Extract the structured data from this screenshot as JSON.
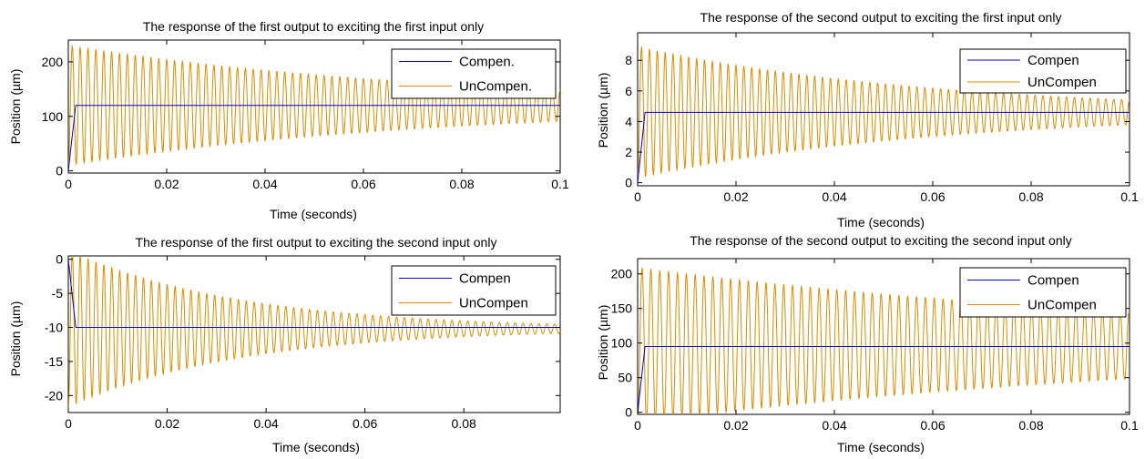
{
  "colors": {
    "compensated": "#0000cc",
    "uncompensated": "#d98c00",
    "axes": "#000000",
    "background": "#ffffff"
  },
  "chart_data": [
    {
      "type": "line",
      "title": "The response of the first output to exciting the first input only",
      "xlabel": "Time (seconds)",
      "ylabel": "Position (µm)",
      "xlim": [
        0,
        0.1
      ],
      "ylim": [
        -4,
        240
      ],
      "xticks": [
        0,
        0.02,
        0.04,
        0.06,
        0.08,
        0.1
      ],
      "xtick_labels": [
        "0",
        "0.02",
        "0.04",
        "0.06",
        "0.08",
        "0.1"
      ],
      "yticks": [
        0,
        100,
        200
      ],
      "ytick_labels": [
        "0",
        "100",
        "200"
      ],
      "legend": "top-right",
      "grid": false,
      "series": [
        {
          "name": "Compen.",
          "final": 120,
          "rise_end": 0.0015,
          "overshoot": 0
        },
        {
          "name": "UnCompen.",
          "final": 120,
          "initial_amplitude": 110,
          "period": 0.0016,
          "decay_tau": 0.075,
          "start": 0.0
        }
      ]
    },
    {
      "type": "line",
      "title": "The response of the second output to exciting the first input only",
      "xlabel": "Time (seconds)",
      "ylabel": "Position (µm)",
      "xlim": [
        0,
        0.1
      ],
      "ylim": [
        -0.2,
        9.8
      ],
      "xticks": [
        0,
        0.02,
        0.04,
        0.06,
        0.08,
        0.1
      ],
      "xtick_labels": [
        "0",
        "0.02",
        "0.04",
        "0.06",
        "0.08",
        "0.1"
      ],
      "yticks": [
        0,
        2,
        4,
        6,
        8
      ],
      "ytick_labels": [
        "0",
        "2",
        "4",
        "6",
        "8"
      ],
      "legend": "top-right",
      "grid": false,
      "series": [
        {
          "name": "Compen",
          "final": 4.6,
          "rise_end": 0.0015,
          "overshoot": 0
        },
        {
          "name": "UnCompen",
          "final": 4.6,
          "initial_amplitude": 4.3,
          "period": 0.0016,
          "decay_tau": 0.06,
          "start": 0.0
        }
      ]
    },
    {
      "type": "line",
      "title": "The response of the first output to exciting the second input only",
      "xlabel": "Time (seconds)",
      "ylabel": "Position (µm)",
      "xlim": [
        0,
        0.0995
      ],
      "ylim": [
        -22.5,
        0.5
      ],
      "xticks": [
        0,
        0.02,
        0.04,
        0.06,
        0.08
      ],
      "xtick_labels": [
        "0",
        "0.02",
        "0.04",
        "0.06",
        "0.08"
      ],
      "yticks": [
        0,
        -5,
        -10,
        -15,
        -20
      ],
      "ytick_labels": [
        "0",
        "-5",
        "-10",
        "-15",
        "-20"
      ],
      "legend": "top-right",
      "grid": false,
      "series": [
        {
          "name": "Compen",
          "final": -10,
          "rise_end": 0.0015,
          "overshoot": 0
        },
        {
          "name": "UnCompen",
          "final": -10.2,
          "initial_amplitude": 11.5,
          "period": 0.0016,
          "decay_tau": 0.035,
          "start": 0.0
        }
      ]
    },
    {
      "type": "line",
      "title": "The response of the second output to exciting the second input only",
      "xlabel": "Time (seconds)",
      "ylabel": "Position (µm)",
      "xlim": [
        0,
        0.1
      ],
      "ylim": [
        -3,
        222
      ],
      "xticks": [
        0,
        0.02,
        0.04,
        0.06,
        0.08,
        0.1
      ],
      "xtick_labels": [
        "0",
        "0.02",
        "0.04",
        "0.06",
        "0.08",
        "0.1"
      ],
      "yticks": [
        0,
        50,
        100,
        150,
        200
      ],
      "ytick_labels": [
        "0",
        "50",
        "100",
        "150",
        "200"
      ],
      "legend": "top-right",
      "grid": false,
      "series": [
        {
          "name": "Compen",
          "final": 95,
          "rise_end": 0.0015,
          "overshoot": 0
        },
        {
          "name": "UnCompen",
          "final": 97,
          "initial_amplitude": 112,
          "period": 0.0018,
          "decay_tau": 0.12,
          "start": 0.0
        }
      ]
    }
  ]
}
